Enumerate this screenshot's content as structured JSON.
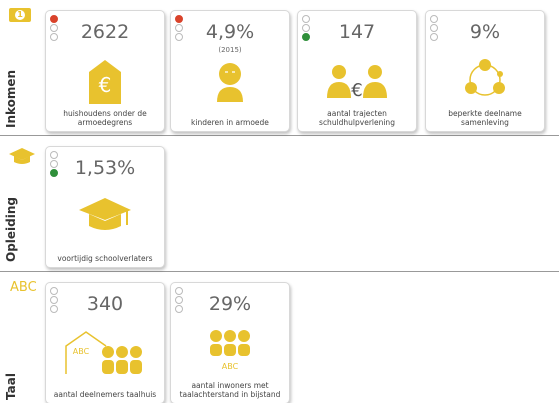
{
  "sections": [
    {
      "title": "Inkomen",
      "badge": "1",
      "cards": [
        {
          "value": "2622",
          "label": "huishoudens onder de armoedegrens",
          "status": "red",
          "icon_text": "€"
        },
        {
          "value": "4,9%",
          "note": "(2015)",
          "label": "kinderen in armoede",
          "status": "red"
        },
        {
          "value": "147",
          "label": "aantal trajecten schuldhulpverlening",
          "status": "green",
          "icon_text": "€"
        },
        {
          "value": "9%",
          "label": "beperkte deelname samenleving"
        }
      ]
    },
    {
      "title": "Opleiding",
      "cards": [
        {
          "value": "1,53%",
          "label": "voortijdig schoolverlaters",
          "status": "green"
        }
      ]
    },
    {
      "title": "Taal",
      "badge": "ABC",
      "cards": [
        {
          "value": "340",
          "label": "aantal deelnemers taalhuis",
          "icon_text": "ABC"
        },
        {
          "value": "29%",
          "label": "aantal inwoners met taalachterstand in bijstand",
          "icon_text": "ABC"
        }
      ]
    }
  ]
}
